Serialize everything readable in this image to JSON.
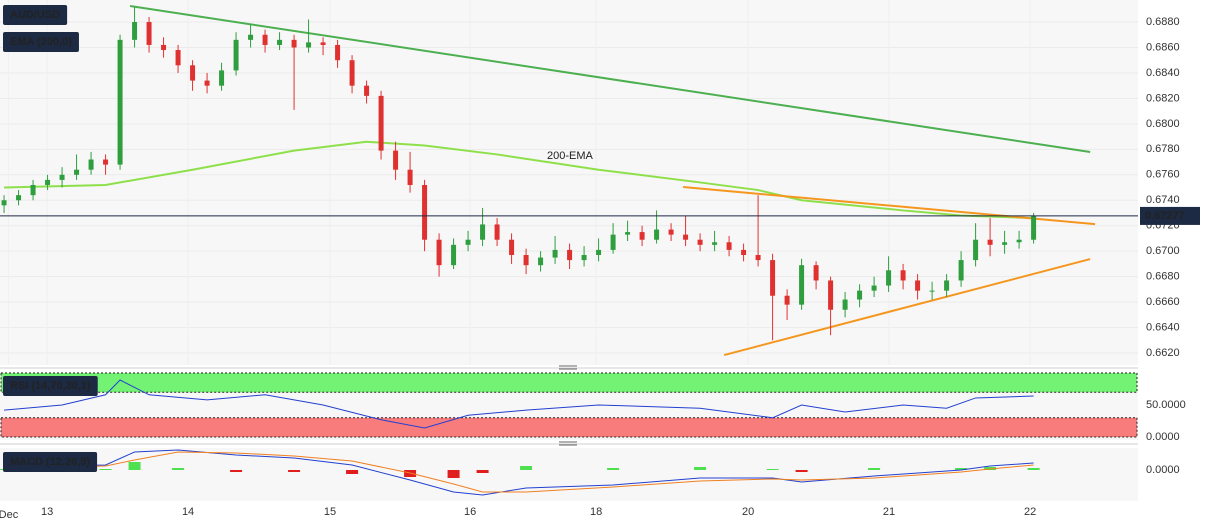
{
  "chart_data": {
    "type": "candlestick",
    "title": "AUD/USD",
    "xlim": [
      -0.28,
      78.2
    ],
    "ylim": [
      0.66106,
      0.68973
    ],
    "yticks": [
      {
        "value": 0.662,
        "label": "0.6620"
      },
      {
        "value": 0.664,
        "label": "0.6640"
      },
      {
        "value": 0.666,
        "label": "0.6660"
      },
      {
        "value": 0.668,
        "label": "0.6680"
      },
      {
        "value": 0.67,
        "label": "0.6700"
      },
      {
        "value": 0.672,
        "label": "0.6720"
      },
      {
        "value": 0.674,
        "label": "0.6740"
      },
      {
        "value": 0.676,
        "label": "0.6760"
      },
      {
        "value": 0.678,
        "label": "0.6780"
      },
      {
        "value": 0.68,
        "label": "0.6800"
      },
      {
        "value": 0.682,
        "label": "0.6820"
      },
      {
        "value": 0.684,
        "label": "0.6840"
      },
      {
        "value": 0.686,
        "label": "0.6860"
      },
      {
        "value": 0.688,
        "label": "0.6880"
      }
    ],
    "xticks": [
      {
        "value": 0.3,
        "label": "Dec"
      },
      {
        "value": 2.97,
        "label": "13"
      },
      {
        "value": 12.69,
        "label": "14"
      },
      {
        "value": 22.48,
        "label": "15"
      },
      {
        "value": 32.14,
        "label": "16"
      },
      {
        "value": 40.83,
        "label": "18"
      },
      {
        "value": 51.31,
        "label": "20"
      },
      {
        "value": 61.03,
        "label": "21"
      },
      {
        "value": 70.76,
        "label": "22"
      }
    ],
    "up_color": "#2e9e3e",
    "down_color": "#e03131",
    "open": [
      0.6736,
      0.674,
      0.6744,
      0.6752,
      0.6756,
      0.676,
      0.6764,
      0.6772,
      0.6768,
      0.6866,
      0.688,
      0.6862,
      0.6858,
      0.6846,
      0.6834,
      0.683,
      0.6842,
      0.6866,
      0.687,
      0.6862,
      0.6866,
      0.686,
      0.6864,
      0.6862,
      0.685,
      0.683,
      0.6822,
      0.6779,
      0.6764,
      0.6752,
      0.6709,
      0.6689,
      0.6705,
      0.6709,
      0.6721,
      0.6709,
      0.6697,
      0.6689,
      0.6695,
      0.6701,
      0.6693,
      0.6697,
      0.6701,
      0.6713,
      0.6715,
      0.6709,
      0.6717,
      0.6713,
      0.6709,
      0.6705,
      0.6707,
      0.6701,
      0.6697,
      0.6693,
      0.6665,
      0.6658,
      0.6689,
      0.6677,
      0.6654,
      0.6662,
      0.6669,
      0.6673,
      0.6685,
      0.6677,
      0.6669,
      0.6669,
      0.6677,
      0.6693,
      0.6709,
      0.6705,
      0.6707,
      0.6709
    ],
    "high": [
      0.6744,
      0.6748,
      0.6756,
      0.676,
      0.6766,
      0.6776,
      0.6778,
      0.6776,
      0.687,
      0.6892,
      0.6884,
      0.6868,
      0.6862,
      0.685,
      0.684,
      0.6848,
      0.6872,
      0.6878,
      0.6874,
      0.6872,
      0.687,
      0.6882,
      0.6868,
      0.6866,
      0.6854,
      0.6834,
      0.6826,
      0.6786,
      0.6778,
      0.6756,
      0.6714,
      0.671,
      0.6716,
      0.6734,
      0.6726,
      0.6714,
      0.6702,
      0.67,
      0.6712,
      0.6706,
      0.6704,
      0.671,
      0.6722,
      0.6724,
      0.672,
      0.6732,
      0.6722,
      0.6728,
      0.6714,
      0.6716,
      0.6712,
      0.6706,
      0.6744,
      0.6698,
      0.667,
      0.6694,
      0.6692,
      0.668,
      0.6668,
      0.6674,
      0.668,
      0.6696,
      0.669,
      0.6682,
      0.6676,
      0.6682,
      0.67,
      0.6722,
      0.6726,
      0.6716,
      0.6716,
      0.673
    ],
    "low": [
      0.673,
      0.6736,
      0.674,
      0.6748,
      0.675,
      0.6756,
      0.676,
      0.676,
      0.6764,
      0.686,
      0.6856,
      0.6852,
      0.684,
      0.6826,
      0.6824,
      0.6826,
      0.6838,
      0.686,
      0.6856,
      0.6858,
      0.6811,
      0.6856,
      0.6854,
      0.6844,
      0.6824,
      0.6816,
      0.6772,
      0.6756,
      0.6746,
      0.67,
      0.668,
      0.6686,
      0.67,
      0.6704,
      0.6704,
      0.669,
      0.6682,
      0.6684,
      0.669,
      0.6686,
      0.6688,
      0.6692,
      0.6698,
      0.6708,
      0.6704,
      0.6706,
      0.6708,
      0.6704,
      0.67,
      0.67,
      0.6696,
      0.6692,
      0.6688,
      0.663,
      0.6646,
      0.6654,
      0.667,
      0.6634,
      0.6648,
      0.6656,
      0.6664,
      0.6668,
      0.667,
      0.6662,
      0.6662,
      0.6664,
      0.6672,
      0.6688,
      0.6696,
      0.6698,
      0.6702,
      0.6706
    ],
    "close": [
      0.674,
      0.6744,
      0.6752,
      0.6756,
      0.676,
      0.6764,
      0.6772,
      0.6768,
      0.6866,
      0.688,
      0.6862,
      0.6858,
      0.6846,
      0.6834,
      0.683,
      0.6842,
      0.6866,
      0.687,
      0.6862,
      0.6866,
      0.686,
      0.6864,
      0.6862,
      0.685,
      0.683,
      0.6822,
      0.6779,
      0.6764,
      0.6752,
      0.6709,
      0.6689,
      0.6705,
      0.6709,
      0.6721,
      0.6709,
      0.6697,
      0.6689,
      0.6695,
      0.6701,
      0.6693,
      0.6697,
      0.6701,
      0.6713,
      0.6715,
      0.6709,
      0.6717,
      0.6713,
      0.6709,
      0.6705,
      0.6707,
      0.6701,
      0.6697,
      0.6693,
      0.6665,
      0.6658,
      0.6689,
      0.6677,
      0.6654,
      0.6662,
      0.6669,
      0.6673,
      0.6685,
      0.6677,
      0.6669,
      0.6669,
      0.6677,
      0.6693,
      0.6709,
      0.6705,
      0.6707,
      0.6709,
      0.67277
    ],
    "last_price": 0.67277,
    "ema": {
      "name": "EMA (200,0)",
      "label": "200-EMA",
      "color": "#8ee04a",
      "x": [
        0,
        7,
        13,
        20,
        25,
        29,
        34,
        41,
        48,
        52,
        55,
        62,
        66,
        71
      ],
      "values": [
        0.675,
        0.6752,
        0.6764,
        0.6779,
        0.6786,
        0.6783,
        0.6776,
        0.6764,
        0.6754,
        0.6748,
        0.674,
        0.6732,
        0.6728,
        0.6726
      ]
    },
    "trendlines": [
      {
        "color": "#4caf50",
        "x": [
          8.69,
          74.9
        ],
        "values": [
          0.68926,
          0.67779
        ]
      },
      {
        "color": "#f5961e",
        "x": [
          46.83,
          75.24
        ],
        "values": [
          0.67504,
          0.67213
        ]
      },
      {
        "color": "#f5961e",
        "x": [
          49.66,
          74.9
        ],
        "values": [
          0.66184,
          0.66938
        ]
      }
    ],
    "rsi": {
      "name": "RSI (14,70,30,1)",
      "color": "#2340d0",
      "ylim": [
        0,
        100
      ],
      "upper": 70,
      "lower": 30,
      "upper_color": "#74f274",
      "lower_color": "#f97c7c",
      "yticks": [
        {
          "value": 50,
          "label": "50.0000"
        },
        {
          "value": 0,
          "label": "0.0000"
        }
      ],
      "x": [
        0,
        4,
        7,
        8,
        10,
        14,
        18,
        22,
        26,
        29,
        32,
        36,
        41,
        48,
        53,
        55,
        58,
        62,
        65,
        67,
        71
      ],
      "values": [
        42,
        50,
        66,
        89,
        66,
        58,
        66,
        50,
        27,
        14,
        34,
        42,
        50,
        45,
        30,
        50,
        39,
        50,
        45,
        61,
        64
      ]
    },
    "macd": {
      "name": "MACD (12,26,9)",
      "ylim": [
        -0.003,
        0.0021
      ],
      "yticks": [
        {
          "value": 0,
          "label": "0.0000"
        }
      ],
      "macd_color": "#2340d0",
      "signal_color": "#f08020",
      "hist_up_color": "#4ee04e",
      "hist_down_color": "#e01e1e",
      "x": [
        0,
        7,
        9,
        12,
        16,
        20,
        24,
        28,
        31,
        33,
        36,
        42,
        48,
        53,
        55,
        60,
        66,
        68,
        71
      ],
      "macd": [
        0.0003,
        0.0005,
        0.0018,
        0.002,
        0.0015,
        0.0012,
        0.0005,
        -0.001,
        -0.0022,
        -0.0025,
        -0.0018,
        -0.0015,
        -0.0008,
        -0.0008,
        -0.0012,
        -0.0006,
        0,
        0.0004,
        0.0007
      ],
      "signal": [
        0.0002,
        0.0004,
        0.001,
        0.0018,
        0.0017,
        0.0014,
        0.0009,
        -0.0003,
        -0.0014,
        -0.0022,
        -0.0022,
        -0.0017,
        -0.0011,
        -0.0009,
        -0.001,
        -0.0008,
        -0.0002,
        0.0001,
        0.0005
      ],
      "histogram": [
        0.0001,
        0.0001,
        0.0008,
        0.0002,
        -0.0002,
        -0.0002,
        -0.0004,
        -0.0007,
        -0.0008,
        -0.0003,
        0.0004,
        0.0002,
        0.0003,
        0.0001,
        -0.0002,
        0.0002,
        0.0002,
        0.0003,
        0.0002
      ]
    }
  }
}
